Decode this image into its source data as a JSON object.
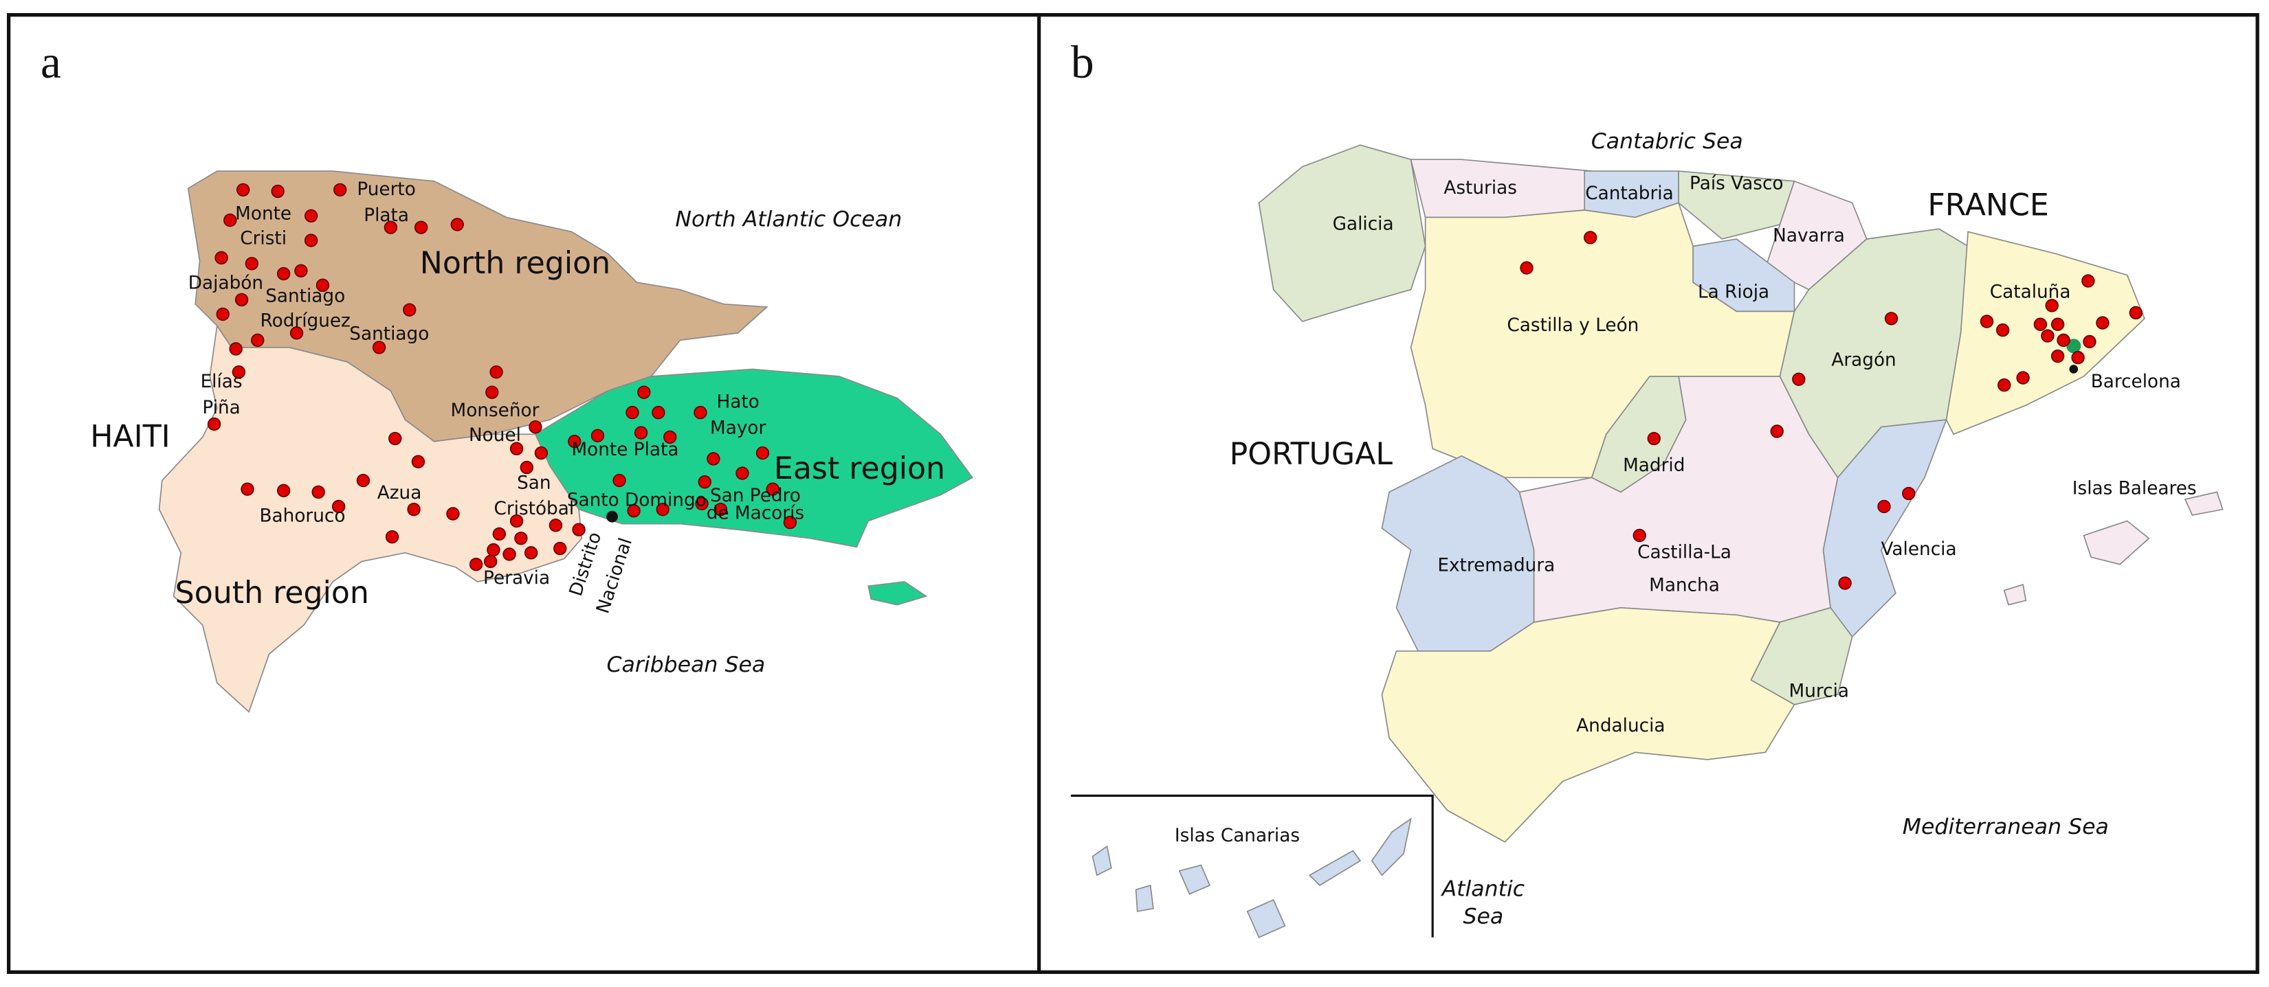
{
  "panels": [
    {
      "label": "a",
      "places": [
        [
          "North Atlantic Ocean"
        ],
        [
          "Puerto",
          "Plata"
        ],
        [
          "Monte",
          "Cristi"
        ],
        [
          "Dajabón"
        ],
        [
          "Santiago",
          "Rodríguez"
        ],
        [
          "Santiago"
        ],
        [
          "North region"
        ],
        [
          "Elías",
          "Piña"
        ],
        [
          "HAITI"
        ],
        [
          "Monseñor",
          "Nouel"
        ],
        [
          "Monte Plata"
        ],
        [
          "Hato",
          "Mayor"
        ],
        [
          "East region"
        ],
        [
          "Azua"
        ],
        [
          "Bahoruco"
        ],
        [
          "San",
          "Cristóbal"
        ],
        [
          "Santo Domingo"
        ],
        [
          "San Pedro",
          "de Macorís"
        ],
        [
          "Distrito",
          "Nacional"
        ],
        [
          "Peravia"
        ],
        [
          "South region"
        ],
        [
          "Caribbean Sea"
        ]
      ]
    },
    {
      "label": "b",
      "places": [
        [
          "Cantabric Sea"
        ],
        [
          "Asturias"
        ],
        [
          "Cantabria"
        ],
        [
          "País Vasco"
        ],
        [
          "Navarra"
        ],
        [
          "FRANCE"
        ],
        [
          "Galicia"
        ],
        [
          "Castilla y León"
        ],
        [
          "La Rioja"
        ],
        [
          "Aragón"
        ],
        [
          "Cataluña"
        ],
        [
          "Barcelona"
        ],
        [
          "PORTUGAL"
        ],
        [
          "Madrid"
        ],
        [
          "Islas Baleares"
        ],
        [
          "Extremadura"
        ],
        [
          "Castilla-La",
          "Mancha"
        ],
        [
          "Valencia"
        ],
        [
          "Murcia"
        ],
        [
          "Andalucia"
        ],
        [
          "Mediterranean Sea"
        ],
        [
          "Islas Canarias"
        ],
        [
          "Atlantic",
          "Sea"
        ]
      ]
    }
  ]
}
